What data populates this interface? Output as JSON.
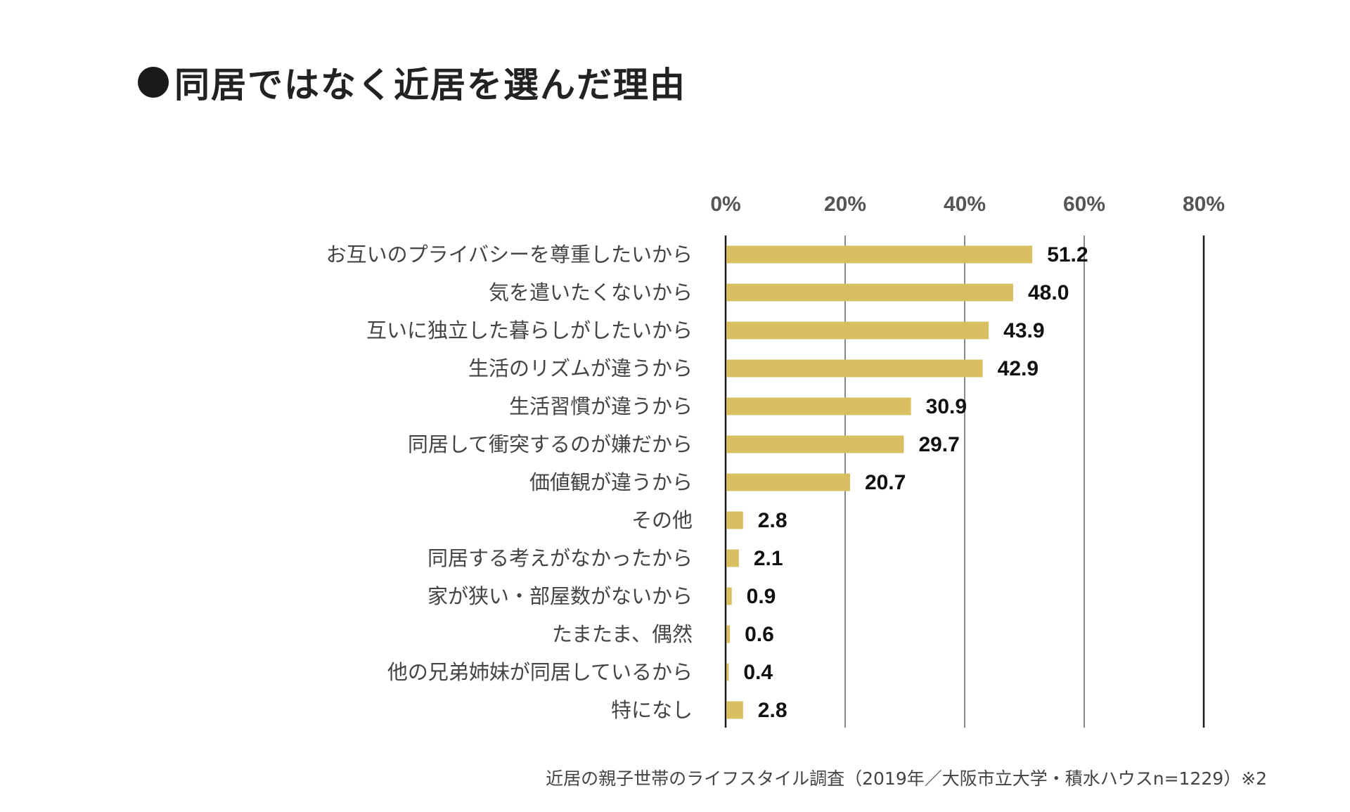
{
  "chart_data": {
    "type": "bar",
    "orientation": "horizontal",
    "title": "同居ではなく近居を選んだ理由",
    "categories": [
      "お互いのプライバシーを尊重したいから",
      "気を遣いたくないから",
      "互いに独立した暮らしがしたいから",
      "生活のリズムが違うから",
      "生活習慣が違うから",
      "同居して衝突するのが嫌だから",
      "価値観が違うから",
      "その他",
      "同居する考えがなかったから",
      "家が狭い・部屋数がないから",
      "たまたま、偶然",
      "他の兄弟姉妹が同居しているから",
      "特になし"
    ],
    "values": [
      51.2,
      48.0,
      43.9,
      42.9,
      30.9,
      29.7,
      20.7,
      2.8,
      2.1,
      0.9,
      0.6,
      0.4,
      2.8
    ],
    "value_labels": [
      "51.2",
      "48.0",
      "43.9",
      "42.9",
      "30.9",
      "29.7",
      "20.7",
      "2.8",
      "2.1",
      "0.9",
      "0.6",
      "0.4",
      "2.8"
    ],
    "xlim": [
      0,
      80
    ],
    "xticks": [
      0,
      20,
      40,
      60,
      80
    ],
    "xtick_labels": [
      "0%",
      "20%",
      "40%",
      "60%",
      "80%"
    ],
    "axis_position": "top",
    "grid": true,
    "bar_color": "#d9bf62",
    "source": "近居の親子世帯のライフスタイル調査（2019年／大阪市立大学・積水ハウスn=1229）※2"
  }
}
